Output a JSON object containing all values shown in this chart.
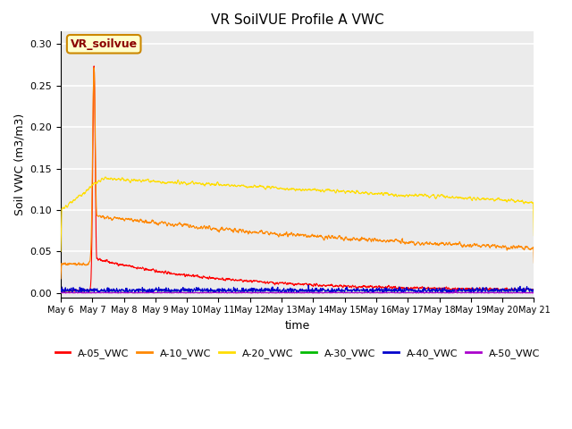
{
  "title": "VR SoilVUE Profile A VWC",
  "xlabel": "time",
  "ylabel": "Soil VWC (m3/m3)",
  "ylim": [
    -0.005,
    0.315
  ],
  "xlim": [
    0,
    15.0
  ],
  "plot_background": "#ebebeb",
  "watermark_text": "VR_soilvue",
  "series": {
    "A-05_VWC": {
      "color": "#ff0000",
      "linewidth": 0.8
    },
    "A-10_VWC": {
      "color": "#ff8800",
      "linewidth": 0.8
    },
    "A-20_VWC": {
      "color": "#ffdd00",
      "linewidth": 0.8
    },
    "A-30_VWC": {
      "color": "#00bb00",
      "linewidth": 0.8
    },
    "A-40_VWC": {
      "color": "#0000cc",
      "linewidth": 0.8
    },
    "A-50_VWC": {
      "color": "#aa00cc",
      "linewidth": 0.8
    }
  },
  "xtick_labels": [
    "May 6",
    "May 7",
    "May 8",
    "May 9",
    "May 10",
    "May 11",
    "May 12",
    "May 13",
    "May 14",
    "May 15",
    "May 16",
    "May 17",
    "May 18",
    "May 19",
    "May 20",
    "May 21"
  ],
  "ytick_values": [
    0.0,
    0.05,
    0.1,
    0.15,
    0.2,
    0.25,
    0.3
  ],
  "num_days": 15,
  "seed": 42
}
